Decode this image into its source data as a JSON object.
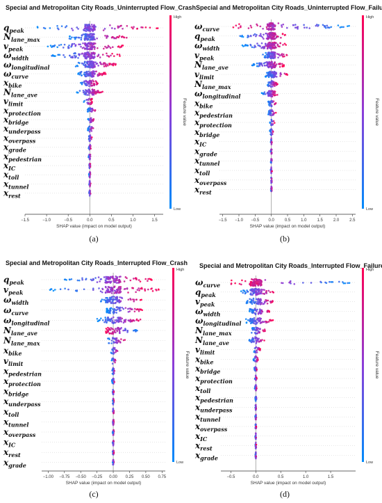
{
  "figure": {
    "colorbar": {
      "high": "High",
      "low": "Low",
      "label": "Feature value",
      "high_color": "#ff0052",
      "mid_color": "#8b3dd9",
      "low_color": "#008bfb"
    },
    "xlabel": "SHAP value (impact on model output)"
  },
  "chart_data": [
    {
      "type": "scatter",
      "subtype": "shap-beeswarm",
      "panel": "(a)",
      "title": "Special and Metropolitan City Roads_Uninterrupted Flow_Crash",
      "xlabel": "SHAP value (impact on model output)",
      "xlim": [
        -1.5,
        1.7
      ],
      "xticks": [
        -1.5,
        -1.0,
        -0.5,
        0.0,
        0.5,
        1.0,
        1.5
      ],
      "xtick_labels": [
        "−1.5",
        "−1.0",
        "−0.5",
        "0.0",
        "0.5",
        "1.0",
        "1.5"
      ],
      "features": [
        {
          "base": "q",
          "sub": "peak",
          "min": -1.3,
          "max": 1.6,
          "sign": 1
        },
        {
          "base": "N",
          "sub": "lane_max",
          "min": -0.5,
          "max": 0.9,
          "sign": 1
        },
        {
          "base": "v",
          "sub": "peak",
          "min": -1.0,
          "max": 0.8,
          "sign": 1
        },
        {
          "base": "ω",
          "sub": "width",
          "min": -0.9,
          "max": 0.75,
          "sign": 1
        },
        {
          "base": "ω",
          "sub": "longitudinal",
          "min": -0.35,
          "max": 0.6,
          "sign": 1
        },
        {
          "base": "ω",
          "sub": "curve",
          "min": -0.3,
          "max": 0.4,
          "sign": 1
        },
        {
          "base": "x",
          "sub": "bike",
          "min": -0.25,
          "max": 0.2,
          "sign": 1
        },
        {
          "base": "N",
          "sub": "lane_ave",
          "min": -0.3,
          "max": 0.3,
          "sign": 1
        },
        {
          "base": "v",
          "sub": "limit",
          "min": -0.15,
          "max": 0.05,
          "sign": 1
        },
        {
          "base": "x",
          "sub": "protection",
          "min": -0.05,
          "max": 0.15,
          "sign": 1
        },
        {
          "base": "x",
          "sub": "bridge",
          "min": -0.05,
          "max": 0.1,
          "sign": 1
        },
        {
          "base": "x",
          "sub": "underpass",
          "min": -0.05,
          "max": 0.1,
          "sign": 1
        },
        {
          "base": "x",
          "sub": "overpass",
          "min": -0.03,
          "max": 0.05,
          "sign": 1
        },
        {
          "base": "x",
          "sub": "grade",
          "min": -0.03,
          "max": 0.03,
          "sign": 1
        },
        {
          "base": "x",
          "sub": "pedestrian",
          "min": -0.03,
          "max": 0.03,
          "sign": 1
        },
        {
          "base": "x",
          "sub": "IC",
          "min": -0.02,
          "max": 0.02,
          "sign": 1
        },
        {
          "base": "x",
          "sub": "toll",
          "min": -0.02,
          "max": 0.02,
          "sign": 1
        },
        {
          "base": "x",
          "sub": "tunnel",
          "min": -0.02,
          "max": 0.02,
          "sign": 1
        },
        {
          "base": "x",
          "sub": "rest",
          "min": -0.02,
          "max": 0.02,
          "sign": 1
        }
      ]
    },
    {
      "type": "scatter",
      "subtype": "shap-beeswarm",
      "panel": "(b)",
      "title": "Special and Metropolitan City Roads_Uninterrupted Flow_Failure",
      "xlabel": "SHAP value (impact on model output)",
      "xlim": [
        -1.6,
        2.6
      ],
      "xticks": [
        -1.5,
        -1.0,
        -0.5,
        0.0,
        0.5,
        1.0,
        1.5,
        2.0,
        2.5
      ],
      "xtick_labels": [
        "−1.5",
        "−1.0",
        "−0.5",
        "0.0",
        "0.5",
        "1.0",
        "1.5",
        "2.0",
        "2.5"
      ],
      "features": [
        {
          "base": "ω",
          "sub": "curve",
          "min": -1.2,
          "max": 2.4,
          "sign": -1
        },
        {
          "base": "q",
          "sub": "peak",
          "min": -1.0,
          "max": 0.5,
          "sign": 1
        },
        {
          "base": "ω",
          "sub": "width",
          "min": -0.9,
          "max": 0.5,
          "sign": 1
        },
        {
          "base": "v",
          "sub": "peak",
          "min": -0.3,
          "max": 0.5,
          "sign": 1
        },
        {
          "base": "N",
          "sub": "lane_ave",
          "min": -0.6,
          "max": 0.4,
          "sign": 1
        },
        {
          "base": "v",
          "sub": "limit",
          "min": -0.2,
          "max": 0.5,
          "sign": 1
        },
        {
          "base": "N",
          "sub": "lane_max",
          "min": -0.15,
          "max": 0.2,
          "sign": 1
        },
        {
          "base": "ω",
          "sub": "longitudinal",
          "min": -0.3,
          "max": 0.2,
          "sign": 1
        },
        {
          "base": "x",
          "sub": "bike",
          "min": -0.1,
          "max": 0.15,
          "sign": 1
        },
        {
          "base": "x",
          "sub": "pedestrian",
          "min": -0.1,
          "max": 0.15,
          "sign": 1
        },
        {
          "base": "x",
          "sub": "protection",
          "min": -0.05,
          "max": 0.1,
          "sign": 1
        },
        {
          "base": "x",
          "sub": "bridge",
          "min": -0.05,
          "max": 0.08,
          "sign": 1
        },
        {
          "base": "x",
          "sub": "IC",
          "min": -0.02,
          "max": 0.02,
          "sign": 1
        },
        {
          "base": "x",
          "sub": "grade",
          "min": -0.02,
          "max": 0.02,
          "sign": 1
        },
        {
          "base": "x",
          "sub": "tunnel",
          "min": -0.02,
          "max": 0.02,
          "sign": 1
        },
        {
          "base": "x",
          "sub": "toll",
          "min": -0.02,
          "max": 0.02,
          "sign": 1
        },
        {
          "base": "x",
          "sub": "overpass",
          "min": -0.02,
          "max": 0.02,
          "sign": 1
        },
        {
          "base": "x",
          "sub": "rest",
          "min": -0.02,
          "max": 0.02,
          "sign": 1
        }
      ]
    },
    {
      "type": "scatter",
      "subtype": "shap-beeswarm",
      "panel": "(c)",
      "title": "Special and Metropolitan City Roads_Interrupted Flow_Crash",
      "xlabel": "SHAP value (impact on model output)",
      "xlim": [
        -1.1,
        0.8
      ],
      "xticks": [
        -1.0,
        -0.75,
        -0.5,
        -0.25,
        0.0,
        0.25,
        0.5,
        0.75
      ],
      "xtick_labels": [
        "−1.00",
        "−0.75",
        "−0.50",
        "−0.25",
        "0.00",
        "0.25",
        "0.50",
        "0.75"
      ],
      "features": [
        {
          "base": "q",
          "sub": "peak",
          "min": -0.75,
          "max": 0.6,
          "sign": 1
        },
        {
          "base": "v",
          "sub": "peak",
          "min": -1.0,
          "max": 0.7,
          "sign": 1
        },
        {
          "base": "ω",
          "sub": "width",
          "min": -0.2,
          "max": 0.45,
          "sign": 1
        },
        {
          "base": "ω",
          "sub": "curve",
          "min": -0.1,
          "max": 0.45,
          "sign": 1
        },
        {
          "base": "ω",
          "sub": "longitudinal",
          "min": -0.25,
          "max": 0.45,
          "sign": 1
        },
        {
          "base": "N",
          "sub": "lane_ave",
          "min": -0.12,
          "max": 0.4,
          "sign": -1
        },
        {
          "base": "N",
          "sub": "lane_max",
          "min": -0.1,
          "max": 0.2,
          "sign": 1
        },
        {
          "base": "x",
          "sub": "bike",
          "min": -0.05,
          "max": 0.1,
          "sign": 1
        },
        {
          "base": "v",
          "sub": "limit",
          "min": -0.03,
          "max": 0.05,
          "sign": 1
        },
        {
          "base": "x",
          "sub": "pedestrian",
          "min": -0.02,
          "max": 0.04,
          "sign": 1
        },
        {
          "base": "x",
          "sub": "protection",
          "min": -0.02,
          "max": 0.03,
          "sign": 1
        },
        {
          "base": "x",
          "sub": "bridge",
          "min": -0.01,
          "max": 0.01,
          "sign": 1
        },
        {
          "base": "x",
          "sub": "underpass",
          "min": -0.01,
          "max": 0.01,
          "sign": 1
        },
        {
          "base": "x",
          "sub": "toll",
          "min": -0.01,
          "max": 0.01,
          "sign": 1
        },
        {
          "base": "x",
          "sub": "tunnel",
          "min": -0.01,
          "max": 0.01,
          "sign": 1
        },
        {
          "base": "x",
          "sub": "overpass",
          "min": -0.01,
          "max": 0.01,
          "sign": 1
        },
        {
          "base": "x",
          "sub": "IC",
          "min": -0.01,
          "max": 0.01,
          "sign": 1
        },
        {
          "base": "x",
          "sub": "rest",
          "min": -0.01,
          "max": 0.01,
          "sign": 1
        },
        {
          "base": "x",
          "sub": "grade",
          "min": -0.01,
          "max": 0.01,
          "sign": 1
        }
      ]
    },
    {
      "type": "scatter",
      "subtype": "shap-beeswarm",
      "panel": "(d)",
      "title": "Special and Metropolitan City Roads_Interrupted Flow_Failure",
      "xlabel": "SHAP value (impact on model output)",
      "xlim": [
        -0.7,
        2.0
      ],
      "xticks": [
        -0.5,
        0.0,
        0.5,
        1.0,
        1.5
      ],
      "xtick_labels": [
        "−0.5",
        "0.0",
        "0.5",
        "1.0",
        "1.5"
      ],
      "features": [
        {
          "base": "ω",
          "sub": "curve",
          "min": -0.5,
          "max": 1.9,
          "sign": -1
        },
        {
          "base": "q",
          "sub": "peak",
          "min": -0.3,
          "max": 0.4,
          "sign": 1
        },
        {
          "base": "v",
          "sub": "peak",
          "min": -0.2,
          "max": 0.4,
          "sign": 1
        },
        {
          "base": "ω",
          "sub": "width",
          "min": -0.15,
          "max": 0.3,
          "sign": 1
        },
        {
          "base": "ω",
          "sub": "longitudinal",
          "min": -0.2,
          "max": 0.35,
          "sign": 1
        },
        {
          "base": "N",
          "sub": "lane_max",
          "min": -0.1,
          "max": 0.2,
          "sign": 1
        },
        {
          "base": "N",
          "sub": "lane_ave",
          "min": -0.15,
          "max": 0.2,
          "sign": 1
        },
        {
          "base": "v",
          "sub": "limit",
          "min": -0.05,
          "max": 0.1,
          "sign": 1
        },
        {
          "base": "x",
          "sub": "bike",
          "min": -0.05,
          "max": 0.05,
          "sign": 1
        },
        {
          "base": "x",
          "sub": "bridge",
          "min": -0.03,
          "max": 0.03,
          "sign": 1
        },
        {
          "base": "x",
          "sub": "protection",
          "min": -0.02,
          "max": 0.02,
          "sign": 1
        },
        {
          "base": "x",
          "sub": "toll",
          "min": -0.02,
          "max": 0.02,
          "sign": 1
        },
        {
          "base": "x",
          "sub": "pedestrian",
          "min": -0.01,
          "max": 0.03,
          "sign": 1
        },
        {
          "base": "x",
          "sub": "underpass",
          "min": -0.01,
          "max": 0.01,
          "sign": 1
        },
        {
          "base": "x",
          "sub": "tunnel",
          "min": -0.01,
          "max": 0.01,
          "sign": 1
        },
        {
          "base": "x",
          "sub": "overpass",
          "min": -0.01,
          "max": 0.01,
          "sign": 1
        },
        {
          "base": "x",
          "sub": "IC",
          "min": -0.01,
          "max": 0.01,
          "sign": 1
        },
        {
          "base": "x",
          "sub": "rest",
          "min": -0.01,
          "max": 0.01,
          "sign": 1
        },
        {
          "base": "x",
          "sub": "grade",
          "min": -0.01,
          "max": 0.01,
          "sign": 1
        }
      ]
    }
  ]
}
